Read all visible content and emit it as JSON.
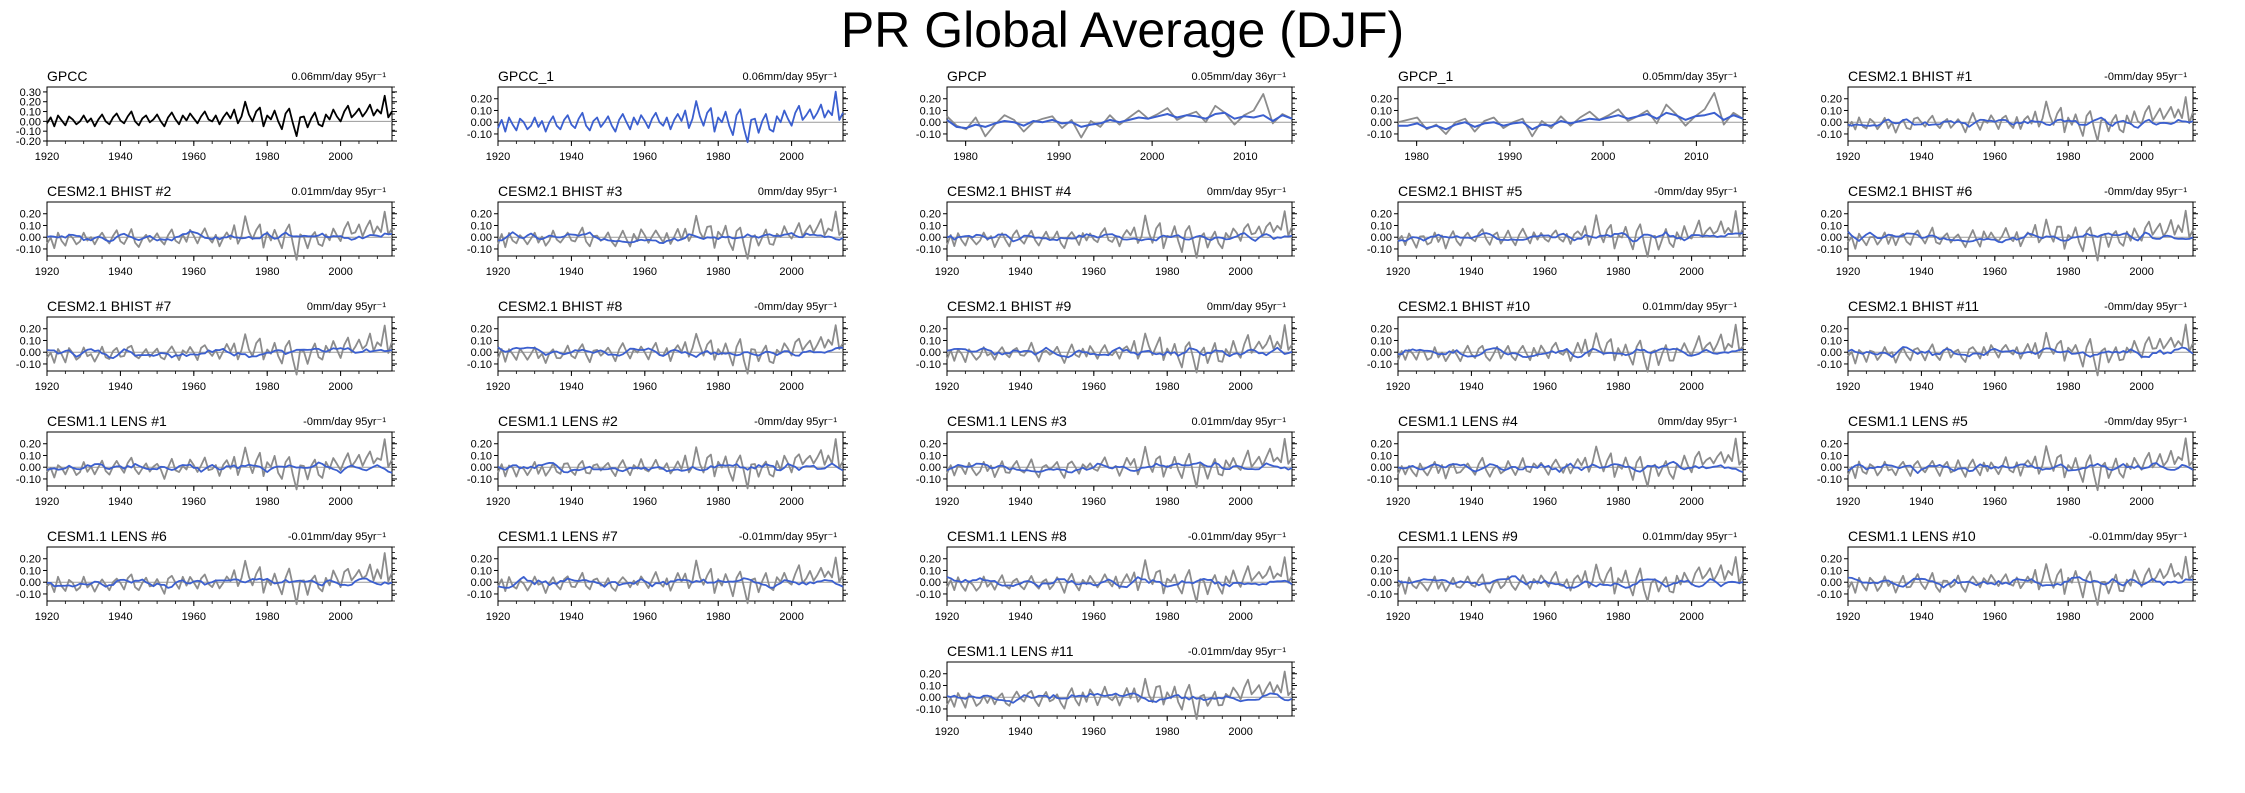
{
  "page": {
    "title": "PR Global Average (DJF)"
  },
  "colors": {
    "obs": "#000000",
    "obs_blue": "#3b5fcf",
    "member": "#8c8c8c",
    "trend": "#3b5fcf",
    "zero": "#9a9a9a"
  },
  "chart_data": [
    {
      "type": "line",
      "title": "GPCC",
      "annotation": "0.06mm/day 95yr⁻¹",
      "xlim": [
        1920,
        2014
      ],
      "ylim": [
        -0.2,
        0.35
      ],
      "yticks": [
        "0.30",
        "0.20",
        "0.10",
        "0.00",
        "-0.10",
        "-0.20"
      ],
      "ytick_values": [
        0.3,
        0.2,
        0.1,
        0.0,
        -0.1,
        -0.2
      ],
      "xticks": [
        "1920",
        "1940",
        "1960",
        "1980",
        "2000"
      ],
      "xtick_values": [
        1920,
        1940,
        1960,
        1980,
        2000
      ],
      "series": [
        {
          "style": "black",
          "values": [
            -0.02,
            0.04,
            -0.05,
            0.06,
            0.01,
            -0.04,
            0.05,
            0.02,
            -0.03,
            0.0,
            0.06,
            -0.01,
            0.03,
            -0.05,
            0.02,
            0.07,
            0.0,
            -0.03,
            0.04,
            0.08,
            0.01,
            -0.02,
            0.05,
            0.1,
            0.0,
            -0.04,
            0.03,
            0.06,
            -0.01,
            0.02,
            0.07,
            0.0,
            -0.05,
            0.04,
            0.09,
            0.02,
            -0.03,
            0.06,
            0.01,
            0.08,
            0.03,
            -0.02,
            0.05,
            0.1,
            0.02,
            0.0,
            0.06,
            -0.03,
            0.04,
            0.09,
            0.03,
            0.12,
            -0.02,
            0.05,
            0.2,
            0.07,
            0.0,
            0.1,
            0.14,
            -0.05,
            0.06,
            0.02,
            0.11,
            0.0,
            -0.08,
            0.08,
            0.13,
            -0.02,
            -0.15,
            0.04,
            0.05,
            -0.06,
            0.03,
            0.09,
            -0.03,
            -0.05,
            0.07,
            0.02,
            0.12,
            0.05,
            0.0,
            0.1,
            0.16,
            0.04,
            0.08,
            0.13,
            0.05,
            0.1,
            0.17,
            0.06,
            0.12,
            0.08,
            0.26,
            0.04,
            0.1
          ]
        }
      ]
    },
    {
      "type": "line",
      "title": "GPCC_1",
      "annotation": "0.06mm/day 95yr⁻¹",
      "xlim": [
        1920,
        2014
      ],
      "ylim": [
        -0.16,
        0.3
      ],
      "yticks": [
        "0.20",
        "0.10",
        "0.00",
        "-0.10"
      ],
      "ytick_values": [
        0.2,
        0.1,
        0.0,
        -0.1
      ],
      "xticks": [
        "1920",
        "1940",
        "1960",
        "1980",
        "2000"
      ],
      "xtick_values": [
        1920,
        1940,
        1960,
        1980,
        2000
      ],
      "series": [
        {
          "style": "obsblue",
          "values": [
            -0.05,
            0.02,
            -0.08,
            0.04,
            -0.02,
            -0.07,
            0.03,
            0.0,
            -0.06,
            -0.03,
            0.04,
            -0.04,
            0.01,
            -0.08,
            0.0,
            0.05,
            -0.03,
            -0.06,
            0.02,
            0.06,
            -0.02,
            -0.05,
            0.03,
            0.08,
            -0.03,
            -0.07,
            0.01,
            0.04,
            -0.04,
            0.0,
            0.05,
            -0.03,
            -0.08,
            0.02,
            0.07,
            0.0,
            -0.06,
            0.04,
            -0.02,
            0.06,
            0.01,
            -0.05,
            0.03,
            0.08,
            0.0,
            -0.03,
            0.04,
            -0.06,
            0.02,
            0.07,
            0.01,
            0.1,
            -0.05,
            0.03,
            0.18,
            0.05,
            -0.03,
            0.08,
            0.12,
            -0.08,
            0.04,
            0.0,
            0.09,
            -0.03,
            -0.11,
            0.06,
            0.11,
            -0.05,
            -0.17,
            0.02,
            0.03,
            -0.09,
            0.01,
            0.07,
            -0.06,
            -0.08,
            0.05,
            0.0,
            0.1,
            0.03,
            -0.03,
            0.08,
            0.14,
            0.02,
            0.06,
            0.11,
            0.03,
            0.08,
            0.15,
            0.04,
            0.1,
            0.06,
            0.26,
            0.02,
            0.08
          ]
        }
      ]
    },
    {
      "type": "line",
      "title": "GPCP",
      "annotation": "0.05mm/day 36yr⁻¹",
      "xlim": [
        1978,
        2015
      ],
      "ylim": [
        -0.16,
        0.3
      ],
      "yticks": [
        "0.20",
        "0.10",
        "0.00",
        "-0.10"
      ],
      "ytick_values": [
        0.2,
        0.1,
        0.0,
        -0.1
      ],
      "xticks": [
        "1980",
        "1990",
        "2000",
        "2010"
      ],
      "xtick_values": [
        1980,
        1990,
        2000,
        2010
      ],
      "series": [
        {
          "style": "gray",
          "values": [
            0.05,
            -0.03,
            -0.06,
            0.04,
            -0.12,
            -0.02,
            0.06,
            0.02,
            -0.08,
            0.0,
            0.03,
            0.05,
            -0.05,
            0.02,
            -0.13,
            0.01,
            -0.04,
            0.06,
            -0.02,
            0.04,
            0.1,
            0.03,
            0.07,
            0.12,
            0.02,
            0.06,
            0.09,
            0.0,
            0.14,
            0.08,
            -0.02,
            0.06,
            0.1,
            0.24,
            -0.01,
            0.07,
            0.03
          ]
        },
        {
          "style": "blue",
          "values": [
            0.02,
            -0.04,
            -0.05,
            -0.02,
            -0.04,
            -0.01,
            0.01,
            0.0,
            -0.03,
            0.01,
            0.0,
            0.02,
            -0.01,
            0.0,
            -0.04,
            -0.02,
            -0.01,
            0.02,
            0.0,
            0.02,
            0.04,
            0.03,
            0.05,
            0.07,
            0.04,
            0.06,
            0.05,
            0.03,
            0.07,
            0.08,
            0.03,
            0.05,
            0.04,
            0.06,
            0.01,
            0.06,
            0.03
          ]
        }
      ]
    },
    {
      "type": "line",
      "title": "GPCP_1",
      "annotation": "0.05mm/day 35yr⁻¹",
      "xlim": [
        1978,
        2015
      ],
      "ylim": [
        -0.16,
        0.3
      ],
      "yticks": [
        "0.20",
        "0.10",
        "0.00",
        "-0.10"
      ],
      "ytick_values": [
        0.2,
        0.1,
        0.0,
        -0.1
      ],
      "xticks": [
        "1980",
        "1990",
        "2000",
        "2010"
      ],
      "xtick_values": [
        1980,
        1990,
        2000,
        2010
      ],
      "series": [
        {
          "style": "gray",
          "values": [
            0.0,
            0.02,
            0.04,
            -0.06,
            -0.02,
            -0.1,
            0.0,
            0.03,
            -0.08,
            0.01,
            0.04,
            -0.05,
            0.0,
            0.03,
            -0.12,
            0.01,
            -0.05,
            0.05,
            -0.03,
            0.04,
            0.09,
            0.02,
            0.06,
            0.11,
            0.01,
            0.05,
            0.1,
            -0.01,
            0.15,
            0.07,
            -0.03,
            0.05,
            0.11,
            0.25,
            -0.02,
            0.08,
            0.03
          ]
        },
        {
          "style": "blue",
          "values": [
            -0.03,
            -0.03,
            -0.01,
            -0.05,
            -0.03,
            -0.06,
            -0.02,
            0.0,
            -0.04,
            -0.01,
            0.0,
            -0.03,
            -0.01,
            0.0,
            -0.06,
            -0.02,
            -0.03,
            0.01,
            -0.01,
            0.01,
            0.03,
            0.02,
            0.04,
            0.06,
            0.03,
            0.05,
            0.07,
            0.03,
            0.08,
            0.06,
            0.02,
            0.05,
            0.06,
            0.08,
            0.02,
            0.06,
            0.03
          ]
        }
      ]
    },
    {
      "type": "line",
      "title": "CESM2.1 BHIST #1",
      "annotation": "-0mm/day 95yr⁻¹",
      "member": true,
      "seed": 1
    },
    {
      "type": "line",
      "title": "CESM2.1 BHIST #2",
      "annotation": "0.01mm/day 95yr⁻¹",
      "member": true,
      "seed": 2
    },
    {
      "type": "line",
      "title": "CESM2.1 BHIST #3",
      "annotation": "0mm/day 95yr⁻¹",
      "member": true,
      "seed": 3
    },
    {
      "type": "line",
      "title": "CESM2.1 BHIST #4",
      "annotation": "0mm/day 95yr⁻¹",
      "member": true,
      "seed": 4
    },
    {
      "type": "line",
      "title": "CESM2.1 BHIST #5",
      "annotation": "-0mm/day 95yr⁻¹",
      "member": true,
      "seed": 5
    },
    {
      "type": "line",
      "title": "CESM2.1 BHIST #6",
      "annotation": "-0mm/day 95yr⁻¹",
      "member": true,
      "seed": 6
    },
    {
      "type": "line",
      "title": "CESM2.1 BHIST #7",
      "annotation": "0mm/day 95yr⁻¹",
      "member": true,
      "seed": 7
    },
    {
      "type": "line",
      "title": "CESM2.1 BHIST #8",
      "annotation": "-0mm/day 95yr⁻¹",
      "member": true,
      "seed": 8
    },
    {
      "type": "line",
      "title": "CESM2.1 BHIST #9",
      "annotation": "0mm/day 95yr⁻¹",
      "member": true,
      "seed": 9
    },
    {
      "type": "line",
      "title": "CESM2.1 BHIST #10",
      "annotation": "0.01mm/day 95yr⁻¹",
      "member": true,
      "seed": 10
    },
    {
      "type": "line",
      "title": "CESM2.1 BHIST #11",
      "annotation": "-0mm/day 95yr⁻¹",
      "member": true,
      "seed": 11
    },
    {
      "type": "line",
      "title": "CESM1.1 LENS #1",
      "annotation": "-0mm/day 95yr⁻¹",
      "member": true,
      "seed": 12
    },
    {
      "type": "line",
      "title": "CESM1.1 LENS #2",
      "annotation": "-0mm/day 95yr⁻¹",
      "member": true,
      "seed": 13
    },
    {
      "type": "line",
      "title": "CESM1.1 LENS #3",
      "annotation": "0.01mm/day 95yr⁻¹",
      "member": true,
      "seed": 14
    },
    {
      "type": "line",
      "title": "CESM1.1 LENS #4",
      "annotation": "0mm/day 95yr⁻¹",
      "member": true,
      "seed": 15
    },
    {
      "type": "line",
      "title": "CESM1.1 LENS #5",
      "annotation": "-0mm/day 95yr⁻¹",
      "member": true,
      "seed": 16
    },
    {
      "type": "line",
      "title": "CESM1.1 LENS #6",
      "annotation": "-0.01mm/day 95yr⁻¹",
      "member": true,
      "seed": 17
    },
    {
      "type": "line",
      "title": "CESM1.1 LENS #7",
      "annotation": "-0.01mm/day 95yr⁻¹",
      "member": true,
      "seed": 18
    },
    {
      "type": "line",
      "title": "CESM1.1 LENS #8",
      "annotation": "-0.01mm/day 95yr⁻¹",
      "member": true,
      "seed": 19
    },
    {
      "type": "line",
      "title": "CESM1.1 LENS #9",
      "annotation": "0.01mm/day 95yr⁻¹",
      "member": true,
      "seed": 20
    },
    {
      "type": "line",
      "title": "CESM1.1 LENS #10",
      "annotation": "-0.01mm/day 95yr⁻¹",
      "member": true,
      "seed": 21
    },
    {
      "type": "line",
      "title": "CESM1.1 LENS #11",
      "annotation": "-0.01mm/day 95yr⁻¹",
      "member": true,
      "seed": 22
    }
  ],
  "member_defaults": {
    "xlim": [
      1920,
      2014
    ],
    "ylim": [
      -0.16,
      0.3
    ],
    "yticks": [
      "0.20",
      "0.10",
      "0.00",
      "-0.10"
    ],
    "ytick_values": [
      0.2,
      0.1,
      0.0,
      -0.1
    ],
    "xticks": [
      "1920",
      "1940",
      "1960",
      "1980",
      "2000"
    ],
    "xtick_values": [
      1920,
      1940,
      1960,
      1980,
      2000
    ],
    "obs_reference": [
      -0.02,
      0.04,
      -0.05,
      0.06,
      0.01,
      -0.04,
      0.05,
      0.02,
      -0.03,
      0.0,
      0.06,
      -0.01,
      0.03,
      -0.05,
      0.02,
      0.07,
      0.0,
      -0.03,
      0.04,
      0.08,
      0.01,
      -0.02,
      0.05,
      0.1,
      0.0,
      -0.04,
      0.03,
      0.06,
      -0.01,
      0.02,
      0.07,
      0.0,
      -0.05,
      0.04,
      0.09,
      0.02,
      -0.03,
      0.06,
      0.01,
      0.08,
      0.03,
      -0.02,
      0.05,
      0.1,
      0.02,
      0.0,
      0.06,
      -0.03,
      0.04,
      0.09,
      0.03,
      0.12,
      -0.02,
      0.05,
      0.2,
      0.07,
      0.0,
      0.1,
      0.14,
      -0.05,
      0.06,
      0.02,
      0.11,
      0.0,
      -0.08,
      0.08,
      0.13,
      -0.02,
      -0.15,
      0.04,
      0.05,
      -0.06,
      0.03,
      0.09,
      -0.03,
      -0.05,
      0.07,
      0.02,
      0.12,
      0.05,
      0.0,
      0.1,
      0.16,
      0.04,
      0.08,
      0.13,
      0.05,
      0.1,
      0.17,
      0.06,
      0.12,
      0.08,
      0.26,
      0.04,
      0.1
    ]
  }
}
